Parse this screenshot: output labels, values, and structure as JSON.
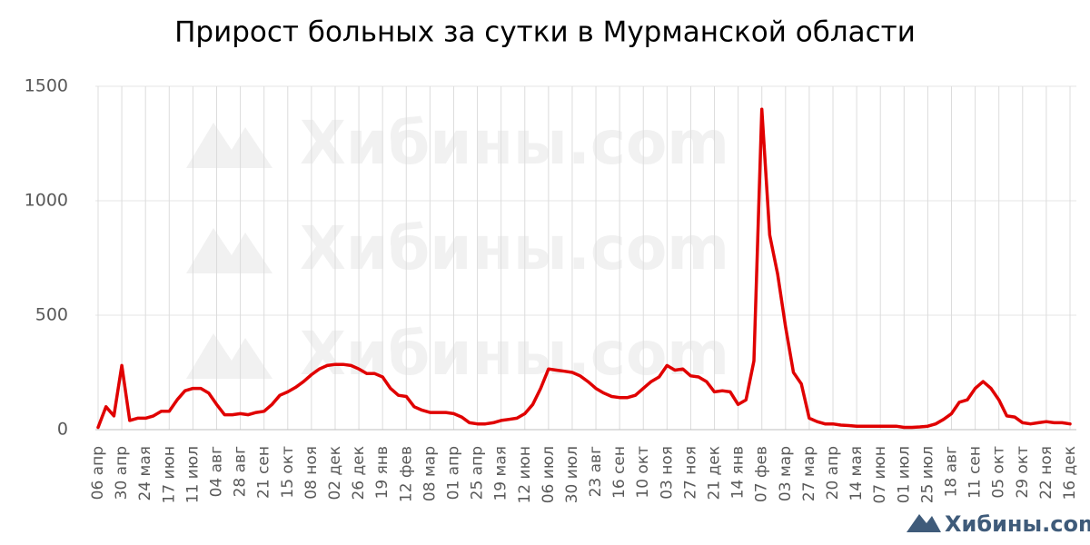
{
  "chart_data": {
    "type": "line",
    "title": "Прирост больных за сутки в Мурманской области",
    "watermark": "Хибины.com",
    "categories": [
      "06 апр",
      null,
      null,
      "30 апр",
      null,
      null,
      "24 мая",
      null,
      null,
      "17 июн",
      null,
      null,
      "11 июл",
      null,
      null,
      "04 авг",
      null,
      null,
      "28 авг",
      null,
      null,
      "21 сен",
      null,
      null,
      "15 окт",
      null,
      null,
      "08 ноя",
      null,
      null,
      "02 дек",
      null,
      null,
      "26 дек",
      null,
      null,
      "19 янв",
      null,
      null,
      "12 фев",
      null,
      null,
      "08 мар",
      null,
      null,
      "01 апр",
      null,
      null,
      "25 апр",
      null,
      null,
      "19 мая",
      null,
      null,
      "12 июн",
      null,
      null,
      "06 июл",
      null,
      null,
      "30 июл",
      null,
      null,
      "23 авг",
      null,
      null,
      "16 сен",
      null,
      null,
      "10 окт",
      null,
      null,
      "03 ноя",
      null,
      null,
      "27 ноя",
      null,
      null,
      "21 дек",
      null,
      null,
      "14 янв",
      null,
      null,
      "07 фев",
      null,
      null,
      "03 мар",
      null,
      null,
      "27 мар",
      null,
      null,
      "20 апр",
      null,
      null,
      "14 мая",
      null,
      null,
      "07 июн",
      null,
      null,
      "01 июл",
      null,
      null,
      "25 июл",
      null,
      null,
      "18 авг",
      null,
      null,
      "11 сен",
      null,
      null,
      "05 окт",
      null,
      null,
      "29 окт",
      null,
      null,
      "22 ноя",
      null,
      null,
      "16 дек"
    ],
    "series": [
      {
        "name": null,
        "color": "#e00000",
        "values": [
          10,
          100,
          60,
          280,
          40,
          50,
          50,
          60,
          80,
          80,
          130,
          170,
          180,
          180,
          160,
          110,
          65,
          65,
          70,
          65,
          75,
          80,
          110,
          150,
          165,
          185,
          210,
          240,
          265,
          280,
          285,
          285,
          280,
          265,
          245,
          245,
          230,
          180,
          150,
          145,
          100,
          85,
          75,
          75,
          75,
          70,
          55,
          30,
          25,
          25,
          30,
          40,
          45,
          50,
          70,
          110,
          180,
          265,
          260,
          255,
          250,
          235,
          210,
          180,
          160,
          145,
          140,
          140,
          150,
          180,
          210,
          230,
          280,
          260,
          265,
          235,
          230,
          210,
          165,
          170,
          165,
          110,
          130,
          300,
          1400,
          850,
          680,
          450,
          250,
          200,
          50,
          35,
          25,
          25,
          20,
          18,
          15,
          15,
          15,
          15,
          15,
          15,
          10,
          10,
          12,
          15,
          25,
          45,
          70,
          120,
          130,
          180,
          210,
          180,
          130,
          60,
          55,
          30,
          25,
          30,
          35,
          30,
          30,
          25
        ]
      }
    ],
    "ylim": [
      0,
      1500
    ],
    "yticks": [
      0,
      500,
      1000,
      1500
    ],
    "grid": true
  }
}
